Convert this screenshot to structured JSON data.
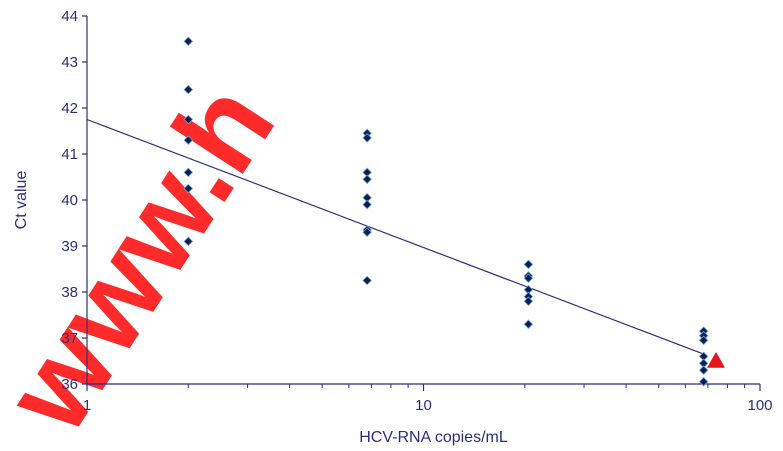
{
  "chart_data": {
    "type": "scatter",
    "xscale": "log",
    "xlim": [
      1,
      100
    ],
    "ylim": [
      36,
      44
    ],
    "xlabel": "HCV-RNA copies/mL",
    "ylabel": "Ct value",
    "xticks": [
      "1",
      "10",
      "100"
    ],
    "yticks": [
      "36",
      "37",
      "38",
      "39",
      "40",
      "41",
      "42",
      "43",
      "44"
    ],
    "grid": false,
    "series": [
      {
        "marker": "diamond",
        "color": "#0a1f4a",
        "points": [
          {
            "x": 2,
            "y": 43.45
          },
          {
            "x": 2,
            "y": 42.4
          },
          {
            "x": 2,
            "y": 41.75
          },
          {
            "x": 2,
            "y": 41.3
          },
          {
            "x": 2,
            "y": 40.6
          },
          {
            "x": 2,
            "y": 40.25
          },
          {
            "x": 2,
            "y": 39.1
          },
          {
            "x": 6.8,
            "y": 41.45
          },
          {
            "x": 6.8,
            "y": 41.35
          },
          {
            "x": 6.8,
            "y": 40.6
          },
          {
            "x": 6.8,
            "y": 40.45
          },
          {
            "x": 6.8,
            "y": 40.05
          },
          {
            "x": 6.8,
            "y": 39.9
          },
          {
            "x": 6.8,
            "y": 39.35
          },
          {
            "x": 6.8,
            "y": 39.3
          },
          {
            "x": 6.8,
            "y": 38.25
          },
          {
            "x": 20.5,
            "y": 38.6
          },
          {
            "x": 20.5,
            "y": 38.35
          },
          {
            "x": 20.5,
            "y": 38.3
          },
          {
            "x": 20.5,
            "y": 38.05
          },
          {
            "x": 20.5,
            "y": 37.9
          },
          {
            "x": 20.5,
            "y": 37.8
          },
          {
            "x": 20.5,
            "y": 37.3
          },
          {
            "x": 68,
            "y": 37.15
          },
          {
            "x": 68,
            "y": 37.05
          },
          {
            "x": 68,
            "y": 36.95
          },
          {
            "x": 68,
            "y": 36.6
          },
          {
            "x": 68,
            "y": 36.45
          },
          {
            "x": 68,
            "y": 36.3
          },
          {
            "x": 68,
            "y": 36.05
          }
        ]
      },
      {
        "marker": "triangle",
        "color": "#e8141b",
        "points": [
          {
            "x": 74,
            "y": 36.5
          }
        ]
      }
    ],
    "trendline": {
      "type": "log-linear",
      "from": {
        "x": 1,
        "y": 41.75
      },
      "to": {
        "x": 68,
        "y": 36.65
      },
      "color": "#2b2f7a"
    }
  },
  "watermark": {
    "text": "www.h",
    "color": "#ff1a1a"
  }
}
